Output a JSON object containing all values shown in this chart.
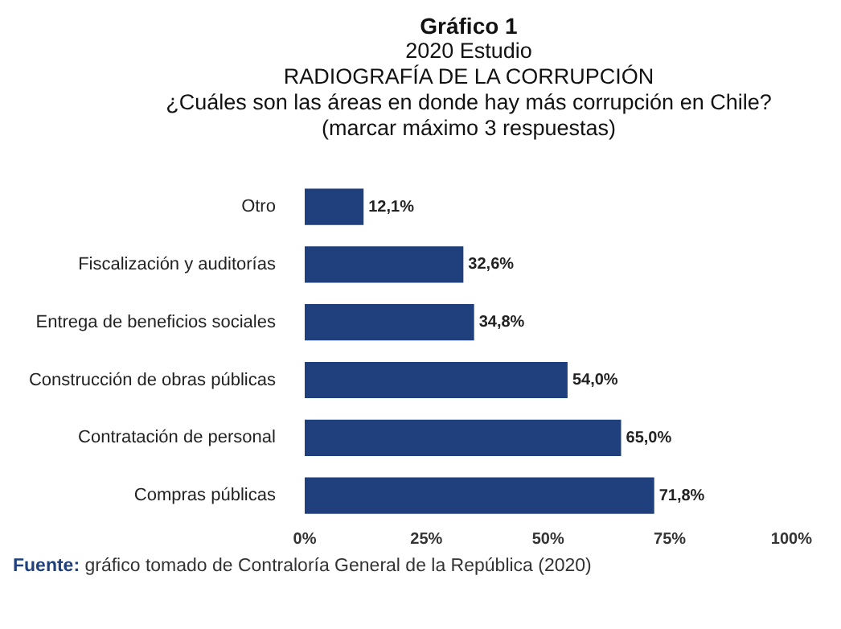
{
  "chart_data": {
    "type": "bar",
    "orientation": "horizontal",
    "title": "Gráfico 1",
    "subtitle": "2020 Estudio\nRADIOGRAFÍA DE LA CORRUPCIÓN\n¿Cuáles son las áreas en donde hay más corrupción en Chile?\n(marcar máximo 3 respuestas)",
    "categories": [
      "Otro",
      "Fiscalización y auditorías",
      "Entrega de beneficios sociales",
      "Construcción de obras públicas",
      "Contratación de personal",
      "Compras públicas"
    ],
    "values": [
      12.1,
      32.6,
      34.8,
      54.0,
      65.0,
      71.8
    ],
    "value_labels": [
      "12,1%",
      "32,6%",
      "34,8%",
      "54,0%",
      "65,0%",
      "71,8%"
    ],
    "color": "#1f3f7d",
    "xlim": [
      0,
      100
    ],
    "xticks": [
      {
        "value": 0,
        "label": "0%"
      },
      {
        "value": 25,
        "label": "25%"
      },
      {
        "value": 50,
        "label": "50%"
      },
      {
        "value": 75,
        "label": "75%"
      },
      {
        "value": 100,
        "label": "100%"
      }
    ],
    "annotations": [
      "Fuente: gráfico tomado de Contraloría General de la República (2020)"
    ]
  }
}
